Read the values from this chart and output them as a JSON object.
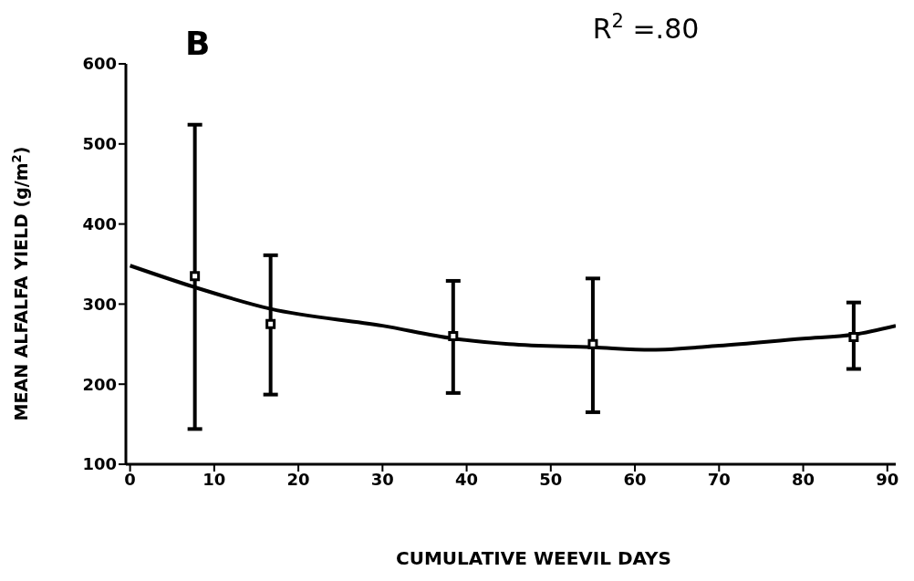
{
  "chart_data": {
    "type": "scatter",
    "title": "R$^{2}$ =.80",
    "annotations": [
      "B"
    ],
    "xlabel": "CUMULATIVE WEEVIL DAYS",
    "ylabel": "MEAN ALFALFA YIELD (g/m$^{2}$)",
    "xlim": [
      -0.5,
      91
    ],
    "xticks": [
      0,
      10,
      20,
      30,
      40,
      50,
      60,
      70,
      80,
      90
    ],
    "ylim": [
      100,
      600
    ],
    "yticks": [
      100,
      200,
      300,
      400,
      500,
      600
    ],
    "series": [
      {
        "color": "#000000",
        "marker": "square",
        "x": [
          7.7,
          16.7,
          38.4,
          55,
          86
        ],
        "values": [
          335,
          275,
          260,
          250,
          259
        ],
        "errors": [
          [
            144,
            524
          ],
          [
            187,
            361
          ],
          [
            189,
            329
          ],
          [
            165,
            332
          ],
          [
            219,
            302
          ]
        ]
      },
      {
        "type": "line",
        "color": "#000000",
        "marker": "none",
        "line_style": "solid",
        "x": [
          0,
          7.7,
          16.7,
          30,
          38.4,
          45,
          55,
          62,
          70,
          80,
          86,
          91
        ],
        "values": [
          348,
          321,
          294,
          273,
          257,
          250,
          246,
          243,
          248,
          257,
          262,
          273
        ]
      }
    ]
  }
}
